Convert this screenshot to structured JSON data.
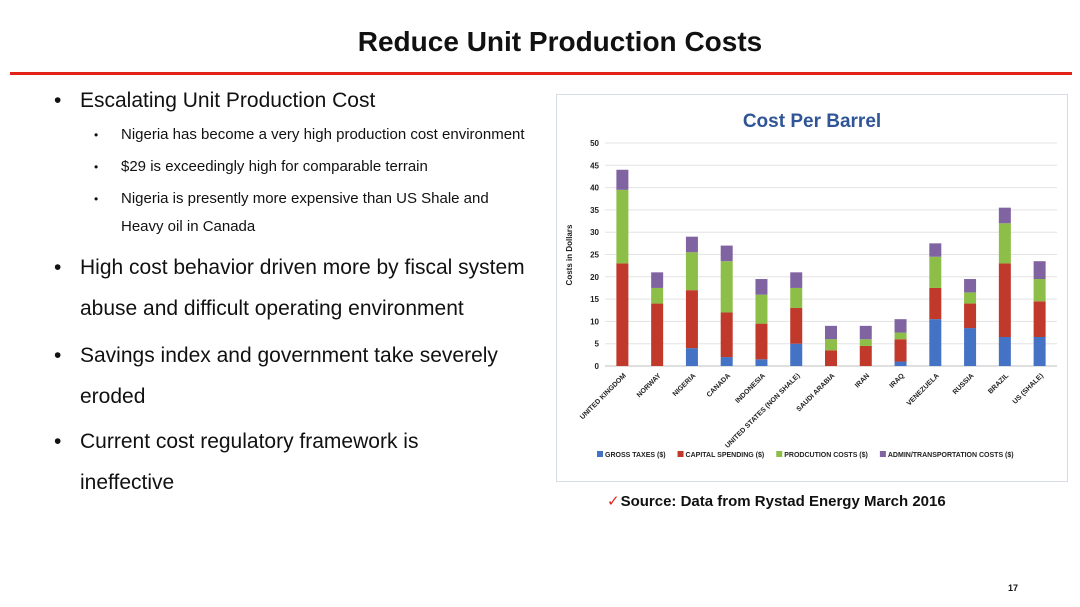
{
  "slide": {
    "title": "Reduce Unit Production Costs",
    "page_number": "17",
    "source": "Source: Data from Rystad Energy March 2016",
    "source_mark": "✓",
    "bullet_char": "•"
  },
  "bullets": [
    {
      "text": "Escalating Unit Production Cost",
      "sub": [
        "Nigeria has become a very high production cost environment",
        "$29 is exceedingly high for comparable terrain",
        "Nigeria is presently more expensive than US Shale and Heavy oil in Canada"
      ]
    },
    {
      "text": "High cost behavior driven more by fiscal system abuse and difficult operating environment",
      "sub": []
    },
    {
      "text": "Savings index and government take severely eroded",
      "sub": []
    },
    {
      "text": "Current cost regulatory framework is ineffective",
      "sub": []
    }
  ],
  "chart_data": {
    "type": "bar",
    "stacked": true,
    "title": "Cost Per Barrel",
    "ylabel": "Costs in Dollars",
    "xlabel": "",
    "ylim": [
      0,
      50
    ],
    "yticks": [
      0,
      5,
      10,
      15,
      20,
      25,
      30,
      35,
      40,
      45,
      50
    ],
    "grid": true,
    "legend_position": "bottom",
    "categories": [
      "UNITED KINGDOM",
      "NORWAY",
      "NIGERIA",
      "CANADA",
      "INDONESIA",
      "UNITED STATES (NON SHALE)",
      "SAUDI ARABIA",
      "IRAN",
      "IRAQ",
      "VENEZUELA",
      "RUSSIA",
      "BRAZIL",
      "US (SHALE)"
    ],
    "series": [
      {
        "name": "GROSS TAXES ($)",
        "color": "#4472c4",
        "values": [
          0,
          0,
          4,
          2,
          1.5,
          5,
          0,
          0,
          1,
          10.5,
          8.5,
          6.5,
          6.5
        ]
      },
      {
        "name": "CAPITAL SPENDING ($)",
        "color": "#c0392b",
        "values": [
          23,
          14,
          13,
          10,
          8,
          8,
          3.5,
          4.5,
          5,
          7,
          5.5,
          16.5,
          8
        ]
      },
      {
        "name": "PRODCUTION COSTS ($)",
        "color": "#8dbe47",
        "values": [
          16.5,
          3.5,
          8.5,
          11.5,
          6.5,
          4.5,
          2.5,
          1.5,
          1.5,
          7,
          2.5,
          9,
          5
        ]
      },
      {
        "name": "ADMIN/TRANSPORTATION COSTS ($)",
        "color": "#8064a2",
        "values": [
          4.5,
          3.5,
          3.5,
          3.5,
          3.5,
          3.5,
          3,
          3,
          3,
          3,
          3,
          3.5,
          4
        ]
      }
    ]
  }
}
